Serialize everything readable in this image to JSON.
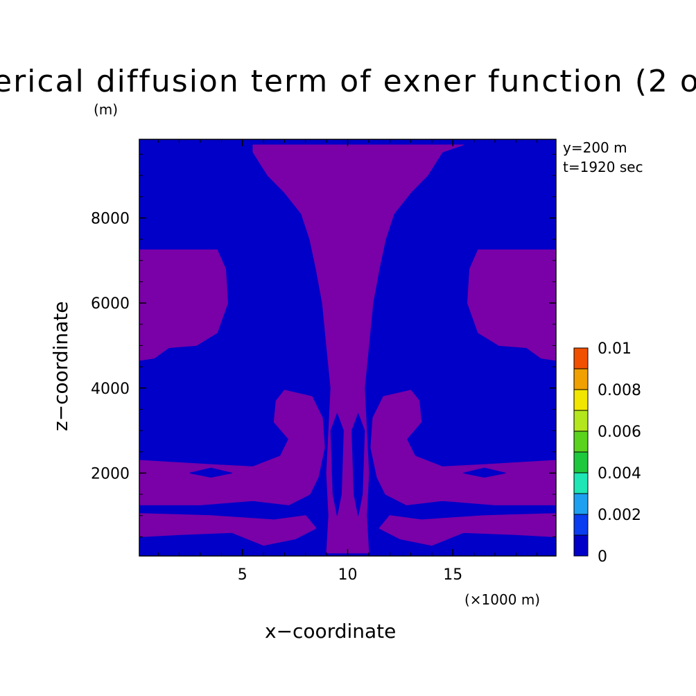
{
  "chart_data": {
    "type": "heatmap",
    "title": "erical diffusion term of exner function (2 o",
    "unit_label": "(m)",
    "xlabel": "x−coordinate",
    "ylabel": "z−coordinate",
    "x_scale_note": "(×1000 m)",
    "xlim": [
      0.1,
      19.9
    ],
    "ylim": [
      50,
      9850
    ],
    "x_ticks": [
      5,
      10,
      15
    ],
    "x_tick_labels": [
      "5",
      "10",
      "15"
    ],
    "y_ticks": [
      2000,
      4000,
      6000,
      8000
    ],
    "y_tick_labels": [
      "2000",
      "4000",
      "6000",
      "8000"
    ],
    "annotations": [
      "y=200 m",
      "t=1920 sec"
    ],
    "colorbar": {
      "levels": [
        0,
        0.001,
        0.002,
        0.003,
        0.004,
        0.005,
        0.006,
        0.007,
        0.008,
        0.009,
        0.01
      ],
      "colors": [
        "#0000c8",
        "#0a3cf0",
        "#1ea0f0",
        "#1ee6b4",
        "#1ec83c",
        "#5ad21e",
        "#b4e61e",
        "#f0e600",
        "#f0a000",
        "#f05000"
      ],
      "tick_labels": [
        "0.01",
        "0.008",
        "0.006",
        "0.004",
        "0.002",
        "0"
      ]
    },
    "field_colors": {
      "background_level": "#0000c8",
      "positive_level": "#7a00a8"
    },
    "regions": [
      {
        "level": "positive",
        "points": [
          [
            5.5,
            9720
          ],
          [
            15.5,
            9720
          ],
          [
            14.5,
            9550
          ],
          [
            13.8,
            9000
          ],
          [
            13.0,
            8600
          ],
          [
            12.2,
            8100
          ],
          [
            11.8,
            7500
          ],
          [
            11.5,
            6800
          ],
          [
            11.2,
            6000
          ],
          [
            11.0,
            5000
          ],
          [
            10.8,
            4000
          ],
          [
            10.9,
            3000
          ],
          [
            11.0,
            2000
          ],
          [
            10.9,
            1000
          ],
          [
            11.0,
            120
          ],
          [
            9.0,
            120
          ],
          [
            9.1,
            1000
          ],
          [
            9.0,
            2000
          ],
          [
            9.1,
            3000
          ],
          [
            9.2,
            4000
          ],
          [
            9.0,
            5000
          ],
          [
            8.8,
            6000
          ],
          [
            8.5,
            6800
          ],
          [
            8.2,
            7500
          ],
          [
            7.8,
            8100
          ],
          [
            7.0,
            8600
          ],
          [
            6.2,
            9000
          ],
          [
            5.5,
            9550
          ]
        ]
      },
      {
        "level": "positive",
        "points": [
          [
            0.1,
            7250
          ],
          [
            3.8,
            7250
          ],
          [
            4.2,
            6800
          ],
          [
            4.3,
            6000
          ],
          [
            3.8,
            5300
          ],
          [
            2.8,
            5000
          ],
          [
            1.5,
            4950
          ],
          [
            0.8,
            4700
          ],
          [
            0.1,
            4650
          ]
        ]
      },
      {
        "level": "positive",
        "points": [
          [
            19.9,
            7250
          ],
          [
            16.2,
            7250
          ],
          [
            15.8,
            6800
          ],
          [
            15.7,
            6000
          ],
          [
            16.2,
            5300
          ],
          [
            17.2,
            5000
          ],
          [
            18.5,
            4950
          ],
          [
            19.2,
            4700
          ],
          [
            19.9,
            4650
          ]
        ]
      },
      {
        "level": "positive",
        "points": [
          [
            0.1,
            2300
          ],
          [
            3.5,
            2200
          ],
          [
            5.5,
            2150
          ],
          [
            6.8,
            2400
          ],
          [
            7.2,
            2800
          ],
          [
            6.5,
            3200
          ],
          [
            6.6,
            3700
          ],
          [
            7.0,
            3950
          ],
          [
            8.3,
            3800
          ],
          [
            8.8,
            3300
          ],
          [
            8.9,
            2600
          ],
          [
            8.6,
            1900
          ],
          [
            8.2,
            1500
          ],
          [
            7.2,
            1250
          ],
          [
            5.5,
            1350
          ],
          [
            3.0,
            1250
          ],
          [
            0.1,
            1250
          ]
        ]
      },
      {
        "level": "positive",
        "points": [
          [
            19.9,
            2300
          ],
          [
            16.5,
            2200
          ],
          [
            14.5,
            2150
          ],
          [
            13.2,
            2400
          ],
          [
            12.8,
            2800
          ],
          [
            13.5,
            3200
          ],
          [
            13.4,
            3700
          ],
          [
            13.0,
            3950
          ],
          [
            11.7,
            3800
          ],
          [
            11.2,
            3300
          ],
          [
            11.1,
            2600
          ],
          [
            11.4,
            1900
          ],
          [
            11.8,
            1500
          ],
          [
            12.8,
            1250
          ],
          [
            14.5,
            1350
          ],
          [
            17.0,
            1250
          ],
          [
            19.9,
            1250
          ]
        ]
      },
      {
        "level": "positive",
        "points": [
          [
            0.1,
            1050
          ],
          [
            3.5,
            1000
          ],
          [
            6.5,
            900
          ],
          [
            8.0,
            1000
          ],
          [
            8.5,
            700
          ],
          [
            7.5,
            450
          ],
          [
            6.0,
            300
          ],
          [
            4.5,
            600
          ],
          [
            2.0,
            550
          ],
          [
            0.1,
            500
          ]
        ]
      },
      {
        "level": "positive",
        "points": [
          [
            19.9,
            1050
          ],
          [
            16.5,
            1000
          ],
          [
            13.5,
            900
          ],
          [
            12.0,
            1000
          ],
          [
            11.5,
            700
          ],
          [
            12.5,
            450
          ],
          [
            14.0,
            300
          ],
          [
            15.5,
            600
          ],
          [
            18.0,
            550
          ],
          [
            19.9,
            500
          ]
        ]
      },
      {
        "level": "background",
        "points": [
          [
            2.5,
            2000
          ],
          [
            3.5,
            2120
          ],
          [
            4.5,
            2000
          ],
          [
            3.5,
            1900
          ]
        ]
      },
      {
        "level": "background",
        "points": [
          [
            15.5,
            2000
          ],
          [
            16.5,
            2120
          ],
          [
            17.5,
            2000
          ],
          [
            16.5,
            1900
          ]
        ]
      },
      {
        "level": "background",
        "points": [
          [
            9.5,
            3400
          ],
          [
            9.8,
            3000
          ],
          [
            9.7,
            1500
          ],
          [
            9.5,
            1000
          ],
          [
            9.3,
            1500
          ],
          [
            9.2,
            3000
          ]
        ]
      },
      {
        "level": "background",
        "points": [
          [
            10.5,
            3400
          ],
          [
            10.8,
            3000
          ],
          [
            10.7,
            1500
          ],
          [
            10.5,
            1000
          ],
          [
            10.3,
            1500
          ],
          [
            10.2,
            3000
          ]
        ]
      }
    ]
  }
}
